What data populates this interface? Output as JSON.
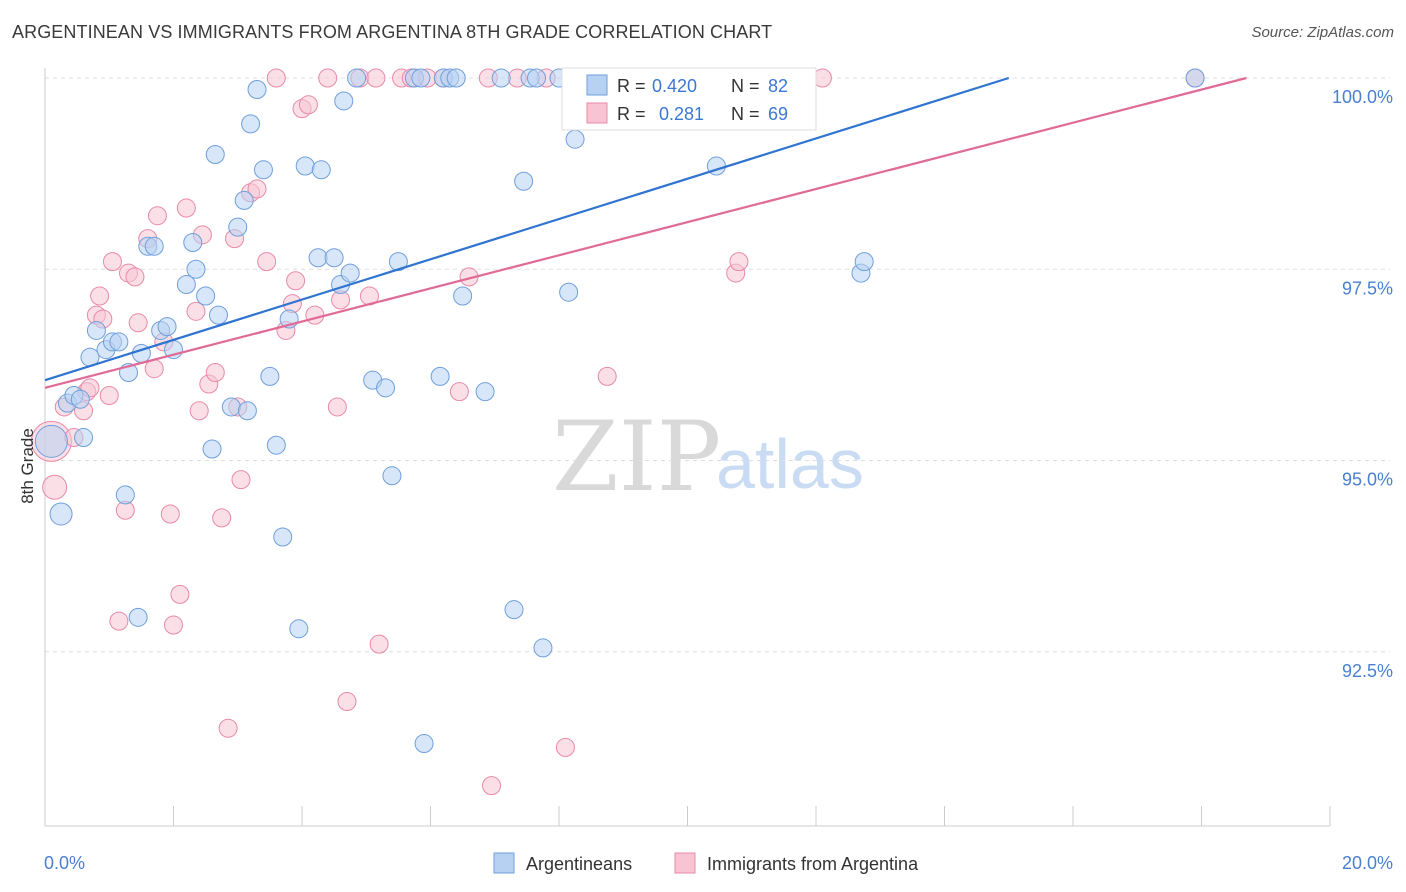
{
  "title": "ARGENTINEAN VS IMMIGRANTS FROM ARGENTINA 8TH GRADE CORRELATION CHART",
  "source": "Source: ZipAtlas.com",
  "watermark": {
    "part1": "ZIP",
    "part2": "atlas"
  },
  "colors": {
    "blue_fill": "#b7d1f2",
    "blue_stroke": "#6f9fdc",
    "blue_line": "#2f74d0",
    "pink_fill": "#f8c4d4",
    "pink_stroke": "#e88aa8",
    "pink_line": "#e06b96",
    "grid": "#dddddd",
    "axis_text": "#4a7fd0"
  },
  "stats_legend": {
    "r_label": "R =",
    "n_label": "N =",
    "rows": [
      {
        "series": "Argentineans",
        "r": "0.420",
        "n": "82"
      },
      {
        "series": "Immigrants from Argentina",
        "r": "0.281",
        "n": "69"
      }
    ]
  },
  "chart_data": {
    "type": "scatter",
    "title": "ARGENTINEAN VS IMMIGRANTS FROM ARGENTINA 8TH GRADE CORRELATION CHART",
    "xlabel": "",
    "ylabel": "8th Grade",
    "xlim": [
      0,
      20
    ],
    "ylim": [
      90.2,
      100.2
    ],
    "x_tick_labels": [
      {
        "value": 0,
        "label": "0.0%"
      },
      {
        "value": 20,
        "label": "20.0%"
      }
    ],
    "x_minor_ticks": [
      0,
      2,
      4,
      6,
      8,
      10,
      12,
      14,
      16,
      18,
      20
    ],
    "y_ticks": [
      {
        "value": 100.0,
        "label": "100.0%"
      },
      {
        "value": 97.5,
        "label": "97.5%"
      },
      {
        "value": 95.0,
        "label": "95.0%"
      },
      {
        "value": 92.5,
        "label": "92.5%"
      }
    ],
    "grid": true,
    "legend": "bottom-center",
    "series": [
      {
        "name": "Argentineans",
        "color": "#6f9fdc",
        "trend": {
          "x0": 0,
          "y0": 96.05,
          "x1": 15.0,
          "y1": 100.0
        },
        "points": [
          [
            0.1,
            95.25,
            16
          ],
          [
            0.25,
            94.3,
            11
          ],
          [
            0.35,
            95.75,
            9
          ],
          [
            0.45,
            95.85,
            9
          ],
          [
            0.55,
            95.8,
            9
          ],
          [
            0.6,
            95.3,
            9
          ],
          [
            0.7,
            96.35,
            9
          ],
          [
            0.8,
            96.7,
            9
          ],
          [
            0.95,
            96.45,
            9
          ],
          [
            1.05,
            96.55,
            9
          ],
          [
            1.15,
            96.55,
            9
          ],
          [
            1.25,
            94.55,
            9
          ],
          [
            1.3,
            96.15,
            9
          ],
          [
            1.45,
            92.95,
            9
          ],
          [
            1.5,
            96.4,
            9
          ],
          [
            1.6,
            97.8,
            9
          ],
          [
            1.7,
            97.8,
            9
          ],
          [
            1.8,
            96.7,
            9
          ],
          [
            1.9,
            96.75,
            9
          ],
          [
            2.0,
            96.45,
            9
          ],
          [
            2.2,
            97.3,
            9
          ],
          [
            2.3,
            97.85,
            9
          ],
          [
            2.35,
            97.5,
            9
          ],
          [
            2.5,
            97.15,
            9
          ],
          [
            2.6,
            95.15,
            9
          ],
          [
            2.65,
            99.0,
            9
          ],
          [
            2.7,
            96.9,
            9
          ],
          [
            2.9,
            95.7,
            9
          ],
          [
            3.0,
            98.05,
            9
          ],
          [
            3.1,
            98.4,
            9
          ],
          [
            3.15,
            95.65,
            9
          ],
          [
            3.2,
            99.4,
            9
          ],
          [
            3.3,
            99.85,
            9
          ],
          [
            3.4,
            98.8,
            9
          ],
          [
            3.5,
            96.1,
            9
          ],
          [
            3.6,
            95.2,
            9
          ],
          [
            3.7,
            94.0,
            9
          ],
          [
            3.8,
            96.85,
            9
          ],
          [
            3.95,
            92.8,
            9
          ],
          [
            4.05,
            98.85,
            9
          ],
          [
            4.25,
            97.65,
            9
          ],
          [
            4.3,
            98.8,
            9
          ],
          [
            4.5,
            97.65,
            9
          ],
          [
            4.6,
            97.3,
            9
          ],
          [
            4.65,
            99.7,
            9
          ],
          [
            4.75,
            97.45,
            9
          ],
          [
            4.85,
            100.0,
            9
          ],
          [
            5.1,
            96.05,
            9
          ],
          [
            5.3,
            95.95,
            9
          ],
          [
            5.4,
            94.8,
            9
          ],
          [
            5.5,
            97.6,
            9
          ],
          [
            5.75,
            100.0,
            9
          ],
          [
            5.85,
            100.0,
            9
          ],
          [
            5.9,
            91.3,
            9
          ],
          [
            6.15,
            96.1,
            9
          ],
          [
            6.2,
            100.0,
            9
          ],
          [
            6.3,
            100.0,
            9
          ],
          [
            6.4,
            100.0,
            9
          ],
          [
            6.5,
            97.15,
            9
          ],
          [
            6.85,
            95.9,
            9
          ],
          [
            7.1,
            100.0,
            9
          ],
          [
            7.3,
            93.05,
            9
          ],
          [
            7.45,
            98.65,
            9
          ],
          [
            7.55,
            100.0,
            9
          ],
          [
            7.65,
            100.0,
            9
          ],
          [
            7.75,
            92.55,
            9
          ],
          [
            8.0,
            100.0,
            9
          ],
          [
            8.15,
            97.2,
            9
          ],
          [
            8.25,
            99.2,
            9
          ],
          [
            8.4,
            100.0,
            9
          ],
          [
            9.0,
            100.0,
            9
          ],
          [
            9.3,
            100.0,
            9
          ],
          [
            10.45,
            98.85,
            9
          ],
          [
            12.7,
            97.45,
            9
          ],
          [
            12.75,
            97.6,
            9
          ],
          [
            17.9,
            100.0,
            9
          ]
        ]
      },
      {
        "name": "Immigrants from Argentina",
        "color": "#e88aa8",
        "trend": {
          "x0": 0,
          "y0": 95.95,
          "x1": 18.7,
          "y1": 100.0
        },
        "points": [
          [
            0.1,
            95.25,
            20
          ],
          [
            0.15,
            94.65,
            12
          ],
          [
            0.3,
            95.7,
            9
          ],
          [
            0.45,
            95.3,
            9
          ],
          [
            0.6,
            95.65,
            9
          ],
          [
            0.65,
            95.9,
            9
          ],
          [
            0.7,
            95.95,
            9
          ],
          [
            0.8,
            96.9,
            9
          ],
          [
            0.85,
            97.15,
            9
          ],
          [
            0.9,
            96.85,
            9
          ],
          [
            1.0,
            95.85,
            9
          ],
          [
            1.05,
            97.6,
            9
          ],
          [
            1.15,
            92.9,
            9
          ],
          [
            1.25,
            94.35,
            9
          ],
          [
            1.3,
            97.45,
            9
          ],
          [
            1.4,
            97.4,
            9
          ],
          [
            1.45,
            96.8,
            9
          ],
          [
            1.6,
            97.9,
            9
          ],
          [
            1.7,
            96.2,
            9
          ],
          [
            1.75,
            98.2,
            9
          ],
          [
            1.85,
            96.55,
            9
          ],
          [
            1.95,
            94.3,
            9
          ],
          [
            2.0,
            92.85,
            9
          ],
          [
            2.1,
            93.25,
            9
          ],
          [
            2.2,
            98.3,
            9
          ],
          [
            2.35,
            96.95,
            9
          ],
          [
            2.4,
            95.65,
            9
          ],
          [
            2.45,
            97.95,
            9
          ],
          [
            2.55,
            96.0,
            9
          ],
          [
            2.65,
            96.15,
            9
          ],
          [
            2.75,
            94.25,
            9
          ],
          [
            2.85,
            91.5,
            9
          ],
          [
            2.95,
            97.9,
            9
          ],
          [
            3.0,
            95.7,
            9
          ],
          [
            3.05,
            94.75,
            9
          ],
          [
            3.2,
            98.5,
            9
          ],
          [
            3.3,
            98.55,
            9
          ],
          [
            3.45,
            97.6,
            9
          ],
          [
            3.6,
            100.0,
            9
          ],
          [
            3.75,
            96.7,
            9
          ],
          [
            3.85,
            97.05,
            9
          ],
          [
            3.9,
            97.35,
            9
          ],
          [
            4.0,
            99.6,
            9
          ],
          [
            4.1,
            99.65,
            9
          ],
          [
            4.2,
            96.9,
            9
          ],
          [
            4.4,
            100.0,
            9
          ],
          [
            4.55,
            95.7,
            9
          ],
          [
            4.6,
            97.1,
            9
          ],
          [
            4.7,
            91.85,
            9
          ],
          [
            4.9,
            100.0,
            9
          ],
          [
            5.05,
            97.15,
            9
          ],
          [
            5.15,
            100.0,
            9
          ],
          [
            5.2,
            92.6,
            9
          ],
          [
            5.55,
            100.0,
            9
          ],
          [
            5.7,
            100.0,
            9
          ],
          [
            5.95,
            100.0,
            9
          ],
          [
            6.2,
            100.0,
            9
          ],
          [
            6.45,
            95.9,
            9
          ],
          [
            6.6,
            97.4,
            9
          ],
          [
            6.9,
            100.0,
            9
          ],
          [
            6.95,
            90.75,
            9
          ],
          [
            7.35,
            100.0,
            9
          ],
          [
            7.8,
            100.0,
            9
          ],
          [
            8.1,
            91.25,
            9
          ],
          [
            8.75,
            96.1,
            9
          ],
          [
            8.8,
            100.0,
            9
          ],
          [
            9.25,
            100.0,
            9
          ],
          [
            10.75,
            97.45,
            9
          ],
          [
            10.8,
            97.6,
            9
          ],
          [
            12.1,
            100.0,
            9
          ],
          [
            17.9,
            100.0,
            9
          ]
        ]
      }
    ]
  }
}
